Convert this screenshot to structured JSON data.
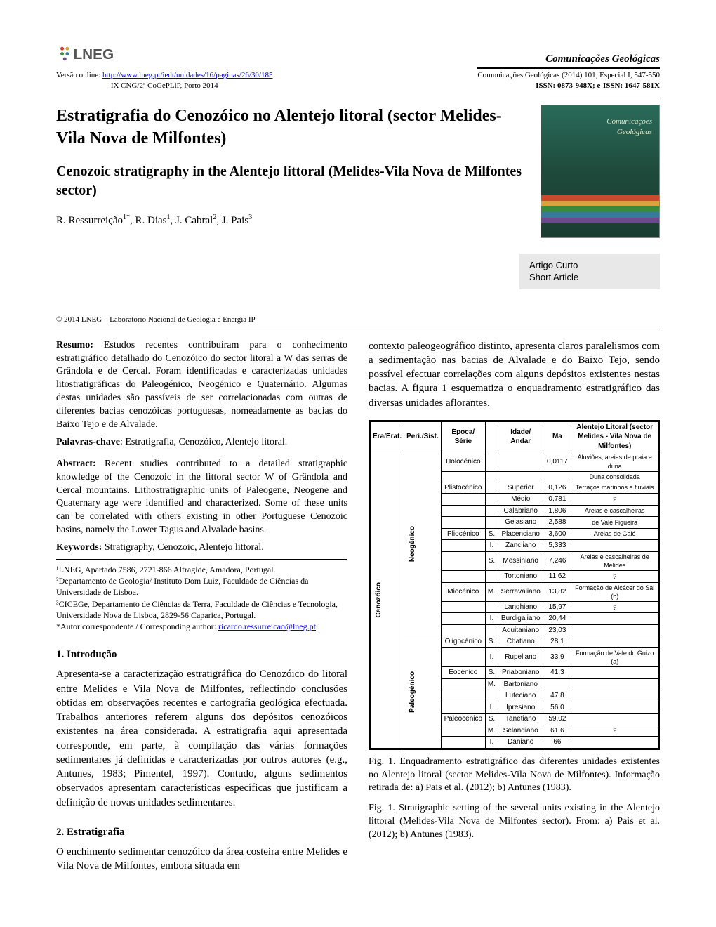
{
  "masthead": {
    "journal_title": "Comunicações Geológicas",
    "version_prefix": "Versão online: ",
    "version_url_text": "http://www.lneg.pt/iedt/unidades/16/paginas/26/30/185",
    "congress": "IX CNG/2º CoGePLiP, Porto 2014",
    "cite": "Comunicações Geológicas (2014) 101, Especial I, 547-550",
    "issn": "ISSN: 0873-948X; e-ISSN: 1647-581X"
  },
  "titles": {
    "pt": "Estratigrafia do Cenozóico no Alentejo litoral (sector Melides-Vila Nova de Milfontes)",
    "en": "Cenozoic stratigraphy in the Alentejo littoral (Melides-Vila Nova de Milfontes sector)"
  },
  "authors_html": "R. Ressurreição<sup>1*</sup>, R. Dias<sup>1</sup>, J. Cabral<sup>2</sup>, J. Pais<sup>3</sup>",
  "cover": {
    "label_line1": "Comunicações",
    "label_line2": "Geológicas",
    "strata_colors": [
      "#c94a2e",
      "#d9a23e",
      "#3a8a3a",
      "#357a99",
      "#6a4a8a"
    ]
  },
  "article_type": {
    "pt": "Artigo Curto",
    "en": "Short Article"
  },
  "copyright": "© 2014 LNEG – Laboratório Nacional de Geologia e Energia IP",
  "abstract_pt_label": "Resumo:",
  "abstract_pt": " Estudos recentes contribuíram para o conhecimento estratigráfico detalhado do Cenozóico do sector litoral a W das serras de Grândola e de Cercal. Foram identificadas e caracterizadas unidades litostratigráficas do Paleogénico, Neogénico e Quaternário. Algumas destas unidades são passíveis de ser correlacionadas com outras de diferentes bacias cenozóicas portuguesas, nomeadamente as bacias do Baixo Tejo e de Alvalade.",
  "keywords_pt_label": "Palavras-chave",
  "keywords_pt": ": Estratigrafia, Cenozóico, Alentejo litoral.",
  "abstract_en_label": "Abstract:",
  "abstract_en": " Recent studies contributed to a detailed stratigraphic knowledge of the Cenozoic in the littoral sector W of Grândola and Cercal mountains. Lithostratigraphic units of Paleogene, Neogene and Quaternary age were identified and characterized. Some of these units can be correlated with others existing in other Portuguese Cenozoic basins, namely the Lower Tagus and Alvalade basins.",
  "keywords_en_label": "Keywords:",
  "keywords_en": " Stratigraphy, Cenozoic, Alentejo littoral.",
  "affiliations": [
    "¹LNEG, Apartado 7586, 2721-866 Alfragide, Amadora, Portugal.",
    "²Departamento de Geologia/ Instituto Dom Luiz, Faculdade de Ciências da Universidade de Lisboa.",
    "³CICEGe, Departamento de Ciências da Terra, Faculdade de Ciências e Tecnologia, Universidade Nova de Lisboa, 2829-56 Caparica, Portugal."
  ],
  "corresponding_prefix": "*Autor correspondente / Corresponding author: ",
  "corresponding_email": "ricardo.ressurreicao@lneg.pt",
  "sections": {
    "intro_h": "1. Introdução",
    "intro_p": "Apresenta-se a caracterização estratigráfica do Cenozóico do litoral entre Melides e Vila Nova de Milfontes, reflectindo conclusões obtidas em observações recentes e cartografia geológica efectuada. Trabalhos anteriores referem alguns dos depósitos cenozóicos existentes na área considerada. A estratigrafia aqui apresentada corresponde, em parte, à compilação das várias formações sedimentares já definidas e caracterizadas por outros autores (e.g., Antunes, 1983; Pimentel, 1997). Contudo, alguns sedimentos observados apresentam características específicas que justificam a definição de novas unidades sedimentares.",
    "strat_h": "2. Estratigrafia",
    "strat_p1": "O enchimento sedimentar cenozóico da área costeira entre Melides e Vila Nova de Milfontes, embora situada em",
    "strat_p2": "contexto paleogeográfico distinto, apresenta claros paralelismos com a sedimentação nas bacias de Alvalade e do Baixo Tejo, sendo possível efectuar correlações com alguns depósitos existentes nestas bacias. A figura 1 esquematiza o enquadramento estratigráfico das diversas unidades aflorantes."
  },
  "figure": {
    "caption_pt": "Fig. 1. Enquadramento estratigráfico das diferentes unidades existentes no Alentejo litoral (sector Melides-Vila Nova de Milfontes). Informação retirada de: a) Pais et al. (2012); b) Antunes (1983).",
    "caption_en": "Fig. 1. Stratigraphic setting of the several units existing in the Alentejo littoral (Melides-Vila Nova de Milfontes sector). From: a) Pais et al. (2012); b) Antunes (1983).",
    "headers": {
      "era": "Era/Erat.",
      "period": "Peri./Sist.",
      "epoch": "Época/\nSérie",
      "age": "Idade/\nAndar",
      "ma": "Ma",
      "region": "Alentejo Litoral (sector Melides - Vila Nova de Milfontes)"
    },
    "era_label": "Cenozóico",
    "period_labels": [
      "Neogénico",
      "Paleogénico"
    ],
    "rows": [
      {
        "epoch": "Holocénico",
        "sub": "",
        "age": "",
        "ma": "0,0117",
        "unit": "Aluviões, areias de praia e duna"
      },
      {
        "epoch": "",
        "sub": "",
        "age": "",
        "ma": "",
        "unit": "Duna consolidada"
      },
      {
        "epoch": "Plistocénico",
        "sub": "",
        "age": "Superior",
        "ma": "0,126",
        "unit": "Terraços marinhos e fluviais"
      },
      {
        "epoch": "",
        "sub": "",
        "age": "Médio",
        "ma": "0,781",
        "unit": "?"
      },
      {
        "epoch": "",
        "sub": "",
        "age": "Calabriano",
        "ma": "1,806",
        "unit": "Areias e cascalheiras"
      },
      {
        "epoch": "",
        "sub": "",
        "age": "Gelasiano",
        "ma": "2,588",
        "unit": "de Vale Figueira"
      },
      {
        "epoch": "Pliocénico",
        "sub": "S.",
        "age": "Placenciano",
        "ma": "3,600",
        "unit": "Areias de Galé"
      },
      {
        "epoch": "",
        "sub": "I.",
        "age": "Zancliano",
        "ma": "5,333",
        "unit": ""
      },
      {
        "epoch": "",
        "sub": "S.",
        "age": "Messiniano",
        "ma": "7,246",
        "unit": "Areias e cascalheiras de Melides"
      },
      {
        "epoch": "",
        "sub": "",
        "age": "Tortoniano",
        "ma": "11,62",
        "unit": "?"
      },
      {
        "epoch": "Miocénico",
        "sub": "M.",
        "age": "Serravaliano",
        "ma": "13,82",
        "unit": "Formação de Alcácer do Sal (b)"
      },
      {
        "epoch": "",
        "sub": "",
        "age": "Langhiano",
        "ma": "15,97",
        "unit": "?"
      },
      {
        "epoch": "",
        "sub": "I.",
        "age": "Burdigaliano",
        "ma": "20,44",
        "unit": ""
      },
      {
        "epoch": "",
        "sub": "",
        "age": "Aquitaniano",
        "ma": "23,03",
        "unit": ""
      },
      {
        "epoch": "Oligocénico",
        "sub": "S.",
        "age": "Chatiano",
        "ma": "28,1",
        "unit": ""
      },
      {
        "epoch": "",
        "sub": "I.",
        "age": "Rupeliano",
        "ma": "33,9",
        "unit": "Formação de Vale do Guizo (a)"
      },
      {
        "epoch": "Eocénico",
        "sub": "S.",
        "age": "Priaboniano",
        "ma": "41,3",
        "unit": ""
      },
      {
        "epoch": "",
        "sub": "M.",
        "age": "Bartoniano",
        "ma": "",
        "unit": ""
      },
      {
        "epoch": "",
        "sub": "",
        "age": "Luteciano",
        "ma": "47,8",
        "unit": ""
      },
      {
        "epoch": "",
        "sub": "I.",
        "age": "Ipresiano",
        "ma": "56,0",
        "unit": ""
      },
      {
        "epoch": "Paleocénico",
        "sub": "S.",
        "age": "Tanetiano",
        "ma": "59,02",
        "unit": ""
      },
      {
        "epoch": "",
        "sub": "M.",
        "age": "Selandiano",
        "ma": "61,6",
        "unit": "?"
      },
      {
        "epoch": "",
        "sub": "I.",
        "age": "Daniano",
        "ma": "66",
        "unit": ""
      }
    ],
    "colors": {
      "border": "#000000",
      "header_bg": "#ffffff",
      "cell_bg": "#ffffff",
      "text": "#000000"
    }
  }
}
